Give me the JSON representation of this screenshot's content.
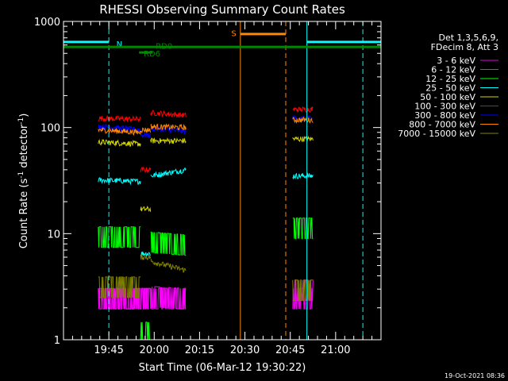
{
  "chart_data": {
    "type": "line",
    "title": "RHESSI Observing Summary Count Rates",
    "xlabel": "Start Time (06-Mar-12 19:30:22)",
    "ylabel": "Count Rate (s⁻¹ detector⁻¹)",
    "ylabel_parts": {
      "base": "Count Rate (s",
      "sup1": "-1",
      "mid": " detector",
      "sup2": "-1",
      "end": ")"
    },
    "y_scale": "log",
    "ylim": [
      1,
      1000
    ],
    "xlim_minutes": [
      0,
      105
    ],
    "x_ticks": [
      {
        "label": "19:45",
        "minute": 15
      },
      {
        "label": "20:00",
        "minute": 30
      },
      {
        "label": "20:15",
        "minute": 45
      },
      {
        "label": "20:30",
        "minute": 60
      },
      {
        "label": "20:45",
        "minute": 75
      },
      {
        "label": "21:00",
        "minute": 90
      }
    ],
    "y_ticks": [
      {
        "label": "1",
        "value": 1
      },
      {
        "label": "10",
        "value": 10
      },
      {
        "label": "100",
        "value": 100
      },
      {
        "label": "1000",
        "value": 1000
      }
    ],
    "legend_header": [
      "Det 1,3,5,6,9,",
      "FDecim 8, Att 3"
    ],
    "legend_position": "right",
    "series": [
      {
        "name": "3 - 6 keV",
        "color": "#e600e6",
        "levels": [
          2.5,
          2.5,
          2.5,
          2.5,
          2.5,
          2.5
        ]
      },
      {
        "name": "6 - 12 keV",
        "color": "#ff00ff",
        "levels": [
          2.5,
          2.5,
          2.5,
          2.6,
          2.5,
          3.0
        ]
      },
      {
        "name": "12 - 25 keV",
        "color": "#00ff00",
        "levels": [
          9.5,
          9.5,
          1.2,
          8.5,
          8.0,
          11.5
        ]
      },
      {
        "name": "25 - 50 keV",
        "color": "#00ffff",
        "levels": [
          32,
          31,
          6.5,
          35,
          40,
          35
        ]
      },
      {
        "name": "50 - 100 keV",
        "color": "#d4d400",
        "levels": [
          73,
          70,
          17,
          75,
          75,
          78
        ]
      },
      {
        "name": "100 - 300 keV",
        "color": "#ff0000",
        "levels": [
          122,
          120,
          40,
          138,
          130,
          148
        ]
      },
      {
        "name": "300 - 800 keV",
        "color": "#0000ff",
        "levels": [
          103,
          95,
          85,
          98,
          92,
          122
        ]
      },
      {
        "name": "800 - 7000 keV",
        "color": "#ff8800",
        "levels": [
          95,
          90,
          95,
          102,
          100,
          118
        ]
      },
      {
        "name": "7000 - 15000 keV",
        "color": "#808000",
        "levels": [
          3.2,
          3.2,
          6.0,
          5.5,
          4.5,
          3.0
        ]
      }
    ],
    "segments_minutes": [
      {
        "start": 11.5,
        "end": 25.5,
        "from_level": 0,
        "to_level": 1
      },
      {
        "start": 25.5,
        "end": 28.8,
        "from_level": 2,
        "to_level": 2
      },
      {
        "start": 28.8,
        "end": 40.5,
        "from_level": 3,
        "to_level": 4
      },
      {
        "start": 75.8,
        "end": 82.5,
        "from_level": 5,
        "to_level": 5
      }
    ],
    "annotations": [
      {
        "label": "N",
        "color": "#00ffff",
        "bar_start": 0,
        "bar_end": 15,
        "bar_level": 640,
        "text_minute": 17.5,
        "text_level": 620
      },
      {
        "label": "N",
        "color": "#00ffff",
        "bar_start": 80.5,
        "bar_end": 105,
        "bar_level": 640,
        "text_minute": null,
        "text_level": null
      },
      {
        "label": "S",
        "color": "#ff8800",
        "bar_start": 58.5,
        "bar_end": 73.5,
        "bar_level": 760,
        "text_minute": 55.5,
        "text_level": 780
      },
      {
        "label": "RD6",
        "color": "#008800",
        "bar_start": 25,
        "bar_end": 29.5,
        "bar_level": 510,
        "text_minute": 26.5,
        "text_level": 500
      },
      {
        "label": "RD0",
        "color": "#008800",
        "bar_start": 0,
        "bar_end": 105,
        "bar_level": 575,
        "text_minute": 30.5,
        "text_level": 590
      }
    ],
    "vertical_markers_minutes": [
      {
        "minute": 0,
        "color": "#00ffff",
        "dash": false
      },
      {
        "minute": 15,
        "color": "#00ffff",
        "dash": true
      },
      {
        "minute": 58.5,
        "color": "#ff8800",
        "dash": false
      },
      {
        "minute": 73.5,
        "color": "#ff8800",
        "dash": true
      },
      {
        "minute": 80.5,
        "color": "#00ffff",
        "dash": false
      },
      {
        "minute": 99,
        "color": "#00ffff",
        "dash": true
      }
    ],
    "grid": false
  },
  "timestamp": "19-Oct-2021 08:36"
}
